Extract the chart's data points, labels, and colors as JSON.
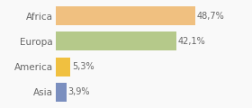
{
  "categories": [
    "Africa",
    "Europa",
    "America",
    "Asia"
  ],
  "values": [
    48.7,
    42.1,
    5.3,
    3.9
  ],
  "labels": [
    "48,7%",
    "42,1%",
    "5,3%",
    "3,9%"
  ],
  "bar_colors": [
    "#f0c080",
    "#b5c98a",
    "#f0c040",
    "#7b8fbf"
  ],
  "background_color": "#f9f9f9",
  "xlim": [
    0,
    58
  ],
  "bar_height": 0.75,
  "label_fontsize": 7,
  "tick_fontsize": 7.5,
  "text_color": "#666666"
}
